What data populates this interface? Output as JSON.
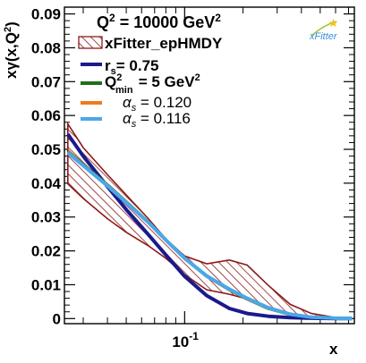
{
  "chart_data": {
    "type": "line",
    "header": {
      "text": "Q",
      "sup": "2",
      "rest": " = 10000 GeV",
      "unit_sup": "2"
    },
    "xlabel": "x",
    "ylabel": {
      "main": "xγ(x,Q",
      "sup": "2",
      "end": ")"
    },
    "xscale": "log",
    "xlim": [
      0.024,
      0.75
    ],
    "ylim": [
      -0.0015,
      0.092
    ],
    "xticks": [
      {
        "value": 0.1,
        "base": "10",
        "exp": "-1"
      }
    ],
    "yticks": [
      {
        "value": 0,
        "label": "0"
      },
      {
        "value": 0.01,
        "label": "0.01"
      },
      {
        "value": 0.02,
        "label": "0.02"
      },
      {
        "value": 0.03,
        "label": "0.03"
      },
      {
        "value": 0.04,
        "label": "0.04"
      },
      {
        "value": 0.05,
        "label": "0.05"
      },
      {
        "value": 0.06,
        "label": "0.06"
      },
      {
        "value": 0.07,
        "label": "0.07"
      },
      {
        "value": 0.08,
        "label": "0.08"
      },
      {
        "value": 0.09,
        "label": "0.09"
      }
    ],
    "band": {
      "name": "xFitter_epHMDY",
      "color": "#8b1a1a",
      "x": [
        0.025,
        0.03,
        0.04,
        0.05,
        0.065,
        0.08,
        0.1,
        0.13,
        0.17,
        0.21,
        0.27,
        0.35,
        0.45,
        0.6,
        0.73
      ],
      "upper": [
        0.0575,
        0.0505,
        0.0425,
        0.0365,
        0.0295,
        0.0235,
        0.0185,
        0.0162,
        0.0173,
        0.0158,
        0.0098,
        0.0042,
        0.0015,
        0.0003,
        0.0
      ],
      "lower": [
        0.0398,
        0.0355,
        0.0295,
        0.0255,
        0.0215,
        0.0178,
        0.013,
        0.0085,
        0.0072,
        0.0058,
        0.003,
        0.001,
        0.0002,
        0.0,
        0.0
      ]
    },
    "series": [
      {
        "name": "r_s = 0.75",
        "color": "#1a1a8c",
        "x": [
          0.025,
          0.03,
          0.04,
          0.05,
          0.065,
          0.08,
          0.1,
          0.13,
          0.17,
          0.21,
          0.27,
          0.35,
          0.45,
          0.6,
          0.73
        ],
        "values": [
          0.0545,
          0.048,
          0.039,
          0.0322,
          0.0248,
          0.0188,
          0.0125,
          0.0068,
          0.003,
          0.0015,
          0.0007,
          0.0003,
          0.0001,
          0.0,
          0.0
        ]
      },
      {
        "name": "Q_min^2 = 5 GeV^2",
        "color": "#1f6e1f",
        "x": [
          0.025,
          0.03,
          0.04,
          0.05,
          0.065,
          0.08,
          0.1,
          0.13,
          0.17,
          0.21,
          0.27,
          0.35,
          0.45,
          0.6,
          0.73
        ],
        "values": [
          0.0495,
          0.0455,
          0.0395,
          0.0345,
          0.0285,
          0.0233,
          0.0178,
          0.0125,
          0.0085,
          0.0058,
          0.003,
          0.0012,
          0.0004,
          0.0001,
          0.0
        ]
      },
      {
        "name": "α_s = 0.120",
        "color": "#f07a1a",
        "x": [
          0.025,
          0.03,
          0.04,
          0.05,
          0.065,
          0.08,
          0.1,
          0.13,
          0.17,
          0.21,
          0.27,
          0.35,
          0.45,
          0.6,
          0.73
        ],
        "values": [
          0.0493,
          0.0453,
          0.0393,
          0.0344,
          0.0284,
          0.0232,
          0.0178,
          0.0125,
          0.0086,
          0.0059,
          0.0031,
          0.0013,
          0.0004,
          0.0001,
          0.0
        ]
      },
      {
        "name": "α_s = 0.116",
        "color": "#4aa8e8",
        "x": [
          0.025,
          0.03,
          0.04,
          0.05,
          0.065,
          0.08,
          0.1,
          0.13,
          0.17,
          0.21,
          0.27,
          0.35,
          0.45,
          0.6,
          0.73
        ],
        "values": [
          0.049,
          0.0452,
          0.0392,
          0.0343,
          0.0284,
          0.0232,
          0.0178,
          0.0126,
          0.0087,
          0.006,
          0.0032,
          0.0013,
          0.0004,
          0.0001,
          0.0
        ]
      }
    ],
    "legend": [
      {
        "kind": "band",
        "label": "xFitter_epHMDY",
        "color": "#8b1a1a"
      },
      {
        "kind": "line",
        "label": "r",
        "sub": "s",
        "rest": "= 0.75",
        "color": "#1a1a8c"
      },
      {
        "kind": "line",
        "label": "Q",
        "sup": "2",
        "sub": "min",
        "rest": " = 5 GeV",
        "unit_sup": "2",
        "color": "#1f6e1f"
      },
      {
        "kind": "line",
        "label": "α",
        "sub": "s",
        "rest": " = 0.120",
        "color": "#f07a1a"
      },
      {
        "kind": "line",
        "label": "α",
        "sub": "s",
        "rest": " = 0.116",
        "color": "#4aa8e8"
      }
    ],
    "legend_position": "top-right",
    "logo": "xFitter"
  }
}
